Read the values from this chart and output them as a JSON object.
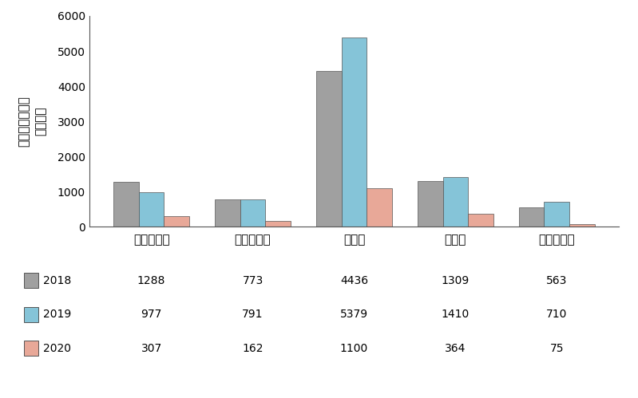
{
  "categories": [
    "トリエステ",
    "ラヴェンナ",
    "ナポリ",
    "バーリ",
    "カターニャ"
  ],
  "years": [
    "2018",
    "2019",
    "2020"
  ],
  "values": {
    "2018": [
      1288,
      773,
      4436,
      1309,
      563
    ],
    "2019": [
      977,
      791,
      5379,
      1410,
      710
    ],
    "2020": [
      307,
      162,
      1100,
      364,
      75
    ]
  },
  "colors": {
    "2018": "#a0a0a0",
    "2019": "#85c4d8",
    "2020": "#e8a898"
  },
  "ylabel_line1": "小児救急外来の",
  "ylabel_line2": "受診者数",
  "ylim": [
    0,
    6000
  ],
  "yticks": [
    0,
    1000,
    2000,
    3000,
    4000,
    5000,
    6000
  ],
  "bar_width": 0.25,
  "edge_color": "#555555",
  "background_color": "#ffffff",
  "table_values": {
    "2018": [
      1288,
      773,
      4436,
      1309,
      563
    ],
    "2019": [
      977,
      791,
      5379,
      1410,
      710
    ],
    "2020": [
      307,
      162,
      1100,
      364,
      75
    ]
  }
}
